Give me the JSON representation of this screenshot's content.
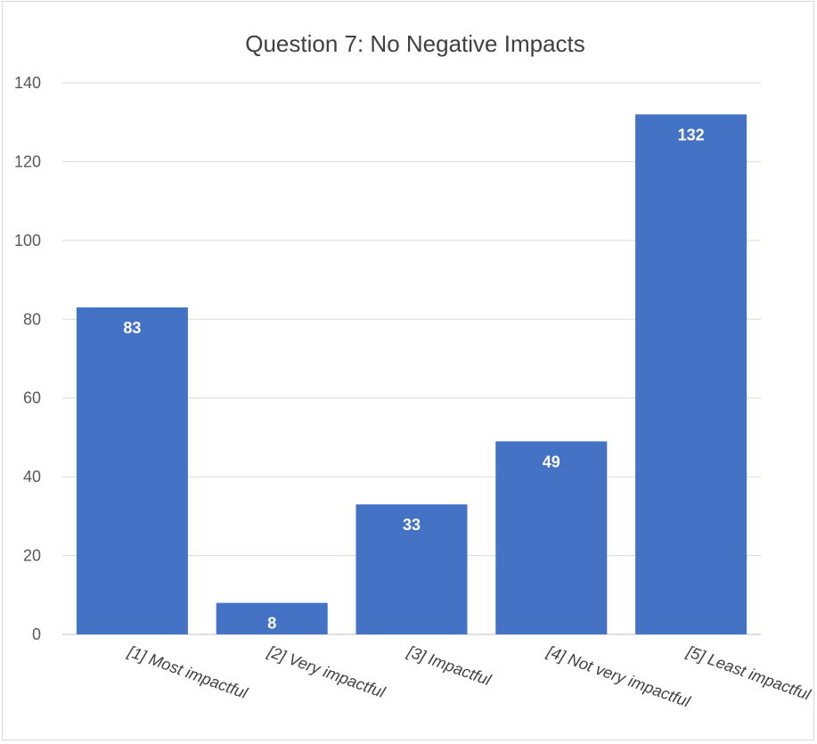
{
  "chart_data": {
    "type": "bar",
    "title": "Question 7: No Negative Impacts",
    "categories": [
      "[1] Most impactful",
      "[2] Very impactful",
      "[3] Impactful",
      "[4] Not very impactful",
      "[5] Least impactful"
    ],
    "values": [
      83,
      8,
      33,
      49,
      132
    ],
    "data_labels": [
      "83",
      "8",
      "33",
      "49",
      "132"
    ],
    "yticks": [
      "0",
      "20",
      "40",
      "60",
      "80",
      "100",
      "120",
      "140"
    ],
    "ylim": [
      0,
      140
    ],
    "grid": true,
    "legend": "none",
    "bar_color": "#4472C4"
  }
}
